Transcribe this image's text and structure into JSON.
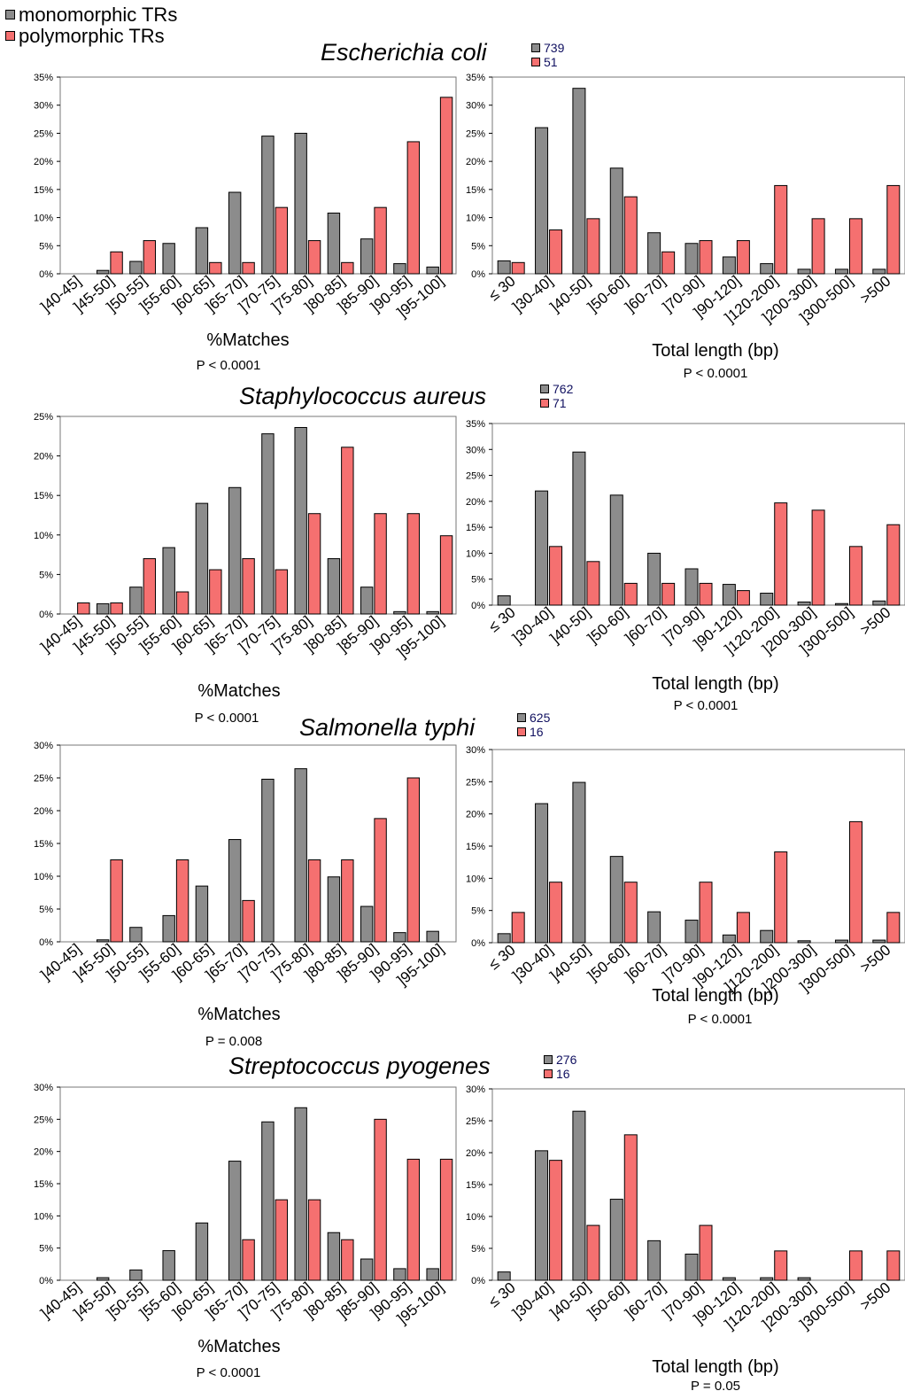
{
  "legend": [
    {
      "label": "monomorphic TRs",
      "color": "#8c8c8c"
    },
    {
      "label": "polymorphic TRs",
      "color": "#f57070"
    }
  ],
  "colors": {
    "mono": "#8c8c8c",
    "poly": "#f57070"
  },
  "panels": [
    {
      "species": "Escherichia coli",
      "counts": {
        "mono": "739",
        "poly": "51"
      }
    },
    {
      "species": "Staphylococcus aureus",
      "counts": {
        "mono": "762",
        "poly": "71"
      }
    },
    {
      "species": "Salmonella typhi",
      "counts": {
        "mono": "625",
        "poly": "16"
      }
    },
    {
      "species": "Streptococcus pyogenes",
      "counts": {
        "mono": "276",
        "poly": "16"
      }
    }
  ],
  "chart_data": [
    {
      "id": "ecoli_matches",
      "type": "bar",
      "xlabel": "%Matches",
      "pvalue": "P < 0.0001",
      "categories": [
        "]40-45]",
        "]45-50]",
        "]50-55]",
        "]55-60]",
        "]60-65]",
        "]65-70]",
        "]70-75]",
        "]75-80]",
        "]80-85]",
        "]85-90]",
        "]90-95]",
        "]95-100]"
      ],
      "ylim": [
        0,
        35
      ],
      "yticks": [
        "0%",
        "5%",
        "10%",
        "15%",
        "20%",
        "25%",
        "30%",
        "35%"
      ],
      "series": [
        {
          "name": "monomorphic TRs",
          "values": [
            0,
            0.6,
            2.2,
            5.4,
            8.2,
            14.5,
            24.5,
            25,
            10.8,
            6.2,
            1.8,
            1.2
          ]
        },
        {
          "name": "polymorphic TRs",
          "values": [
            0,
            3.9,
            5.9,
            0,
            2,
            2,
            11.8,
            5.9,
            2,
            11.8,
            23.5,
            31.4
          ]
        }
      ]
    },
    {
      "id": "ecoli_length",
      "type": "bar",
      "xlabel": "Total length (bp)",
      "pvalue": "P < 0.0001",
      "categories": [
        "≤ 30",
        "]30-40]",
        "]40-50]",
        "]50-60]",
        "]60-70]",
        "]70-90]",
        "]90-120]",
        "]120-200]",
        "]200-300]",
        "]300-500]",
        ">500"
      ],
      "ylim": [
        0,
        35
      ],
      "yticks": [
        "0%",
        "5%",
        "10%",
        "15%",
        "20%",
        "25%",
        "30%",
        "35%"
      ],
      "series": [
        {
          "name": "monomorphic TRs",
          "values": [
            2.3,
            26,
            33,
            18.8,
            7.3,
            5.4,
            3,
            1.8,
            0.8,
            0.8,
            0.8
          ]
        },
        {
          "name": "polymorphic TRs",
          "values": [
            2,
            7.8,
            9.8,
            13.7,
            3.9,
            5.9,
            5.9,
            15.7,
            9.8,
            9.8,
            15.7
          ]
        }
      ]
    },
    {
      "id": "saureus_matches",
      "type": "bar",
      "xlabel": "%Matches",
      "pvalue": "P < 0.0001",
      "categories": [
        "]40-45]",
        "]45-50]",
        "]50-55]",
        "]55-60]",
        "]60-65]",
        "]65-70]",
        "]70-75]",
        "]75-80]",
        "]80-85]",
        "]85-90]",
        "]90-95]",
        "]95-100]"
      ],
      "ylim": [
        0,
        25
      ],
      "yticks": [
        "0%",
        "5%",
        "10%",
        "15%",
        "20%",
        "25%"
      ],
      "series": [
        {
          "name": "monomorphic TRs",
          "values": [
            0,
            1.3,
            3.4,
            8.4,
            14,
            16,
            22.8,
            23.6,
            7,
            3.4,
            0.3,
            0.3
          ]
        },
        {
          "name": "polymorphic TRs",
          "values": [
            1.4,
            1.4,
            7,
            2.8,
            5.6,
            7,
            5.6,
            12.7,
            21.1,
            12.7,
            12.7,
            9.9
          ]
        }
      ]
    },
    {
      "id": "saureus_length",
      "type": "bar",
      "xlabel": "Total length (bp)",
      "pvalue": "P < 0.0001",
      "categories": [
        "≤ 30",
        "]30-40]",
        "]40-50]",
        "]50-60]",
        "]60-70]",
        "]70-90]",
        "]90-120]",
        "]120-200]",
        "]200-300]",
        "]300-500]",
        ">500"
      ],
      "ylim": [
        0,
        35
      ],
      "yticks": [
        "0%",
        "5%",
        "10%",
        "15%",
        "20%",
        "25%",
        "30%",
        "35%"
      ],
      "series": [
        {
          "name": "monomorphic TRs",
          "values": [
            1.8,
            22,
            29.5,
            21.2,
            10,
            7,
            4,
            2.3,
            0.6,
            0.3,
            0.8
          ]
        },
        {
          "name": "polymorphic TRs",
          "values": [
            0,
            11.3,
            8.4,
            4.2,
            4.2,
            4.2,
            2.8,
            19.7,
            18.3,
            11.3,
            15.5
          ]
        }
      ]
    },
    {
      "id": "styphi_matches",
      "type": "bar",
      "xlabel": "%Matches",
      "pvalue": "P = 0.008",
      "categories": [
        "]40-45]",
        "]45-50]",
        "]50-55]",
        "]55-60]",
        "]60-65]",
        "]65-70]",
        "]70-75]",
        "]75-80]",
        "]80-85]",
        "]85-90]",
        "]90-95]",
        "]95-100]"
      ],
      "ylim": [
        0,
        30
      ],
      "yticks": [
        "0%",
        "5%",
        "10%",
        "15%",
        "20%",
        "25%",
        "30%"
      ],
      "series": [
        {
          "name": "monomorphic TRs",
          "values": [
            0,
            0.3,
            2.2,
            4,
            8.5,
            15.6,
            24.8,
            26.4,
            9.9,
            5.4,
            1.4,
            1.6
          ]
        },
        {
          "name": "polymorphic TRs",
          "values": [
            0,
            12.5,
            0,
            12.5,
            0,
            6.3,
            0,
            12.5,
            12.5,
            18.8,
            25,
            0
          ]
        }
      ]
    },
    {
      "id": "styphi_length",
      "type": "bar",
      "xlabel": "Total length (bp)",
      "pvalue": "P < 0.0001",
      "categories": [
        "≤ 30",
        "]30-40]",
        "]40-50]",
        "]50-60]",
        "]60-70]",
        "]70-90]",
        "]90-120]",
        "]120-200]",
        "]200-300]",
        "]300-500]",
        ">500"
      ],
      "ylim": [
        0,
        30
      ],
      "yticks": [
        "0%",
        "5%",
        "10%",
        "15%",
        "20%",
        "25%",
        "30%"
      ],
      "series": [
        {
          "name": "monomorphic TRs",
          "values": [
            1.4,
            21.6,
            24.9,
            13.4,
            4.8,
            3.5,
            1.2,
            1.9,
            0.3,
            0.4,
            0.4
          ]
        },
        {
          "name": "polymorphic TRs",
          "values": [
            4.7,
            9.4,
            0,
            9.4,
            0,
            9.4,
            4.7,
            14.1,
            0,
            18.8,
            4.7
          ]
        }
      ]
    },
    {
      "id": "spyogenes_matches",
      "type": "bar",
      "xlabel": "%Matches",
      "pvalue": "P < 0.0001",
      "categories": [
        "]40-45]",
        "]45-50]",
        "]50-55]",
        "]55-60]",
        "]60-65]",
        "]65-70]",
        "]70-75]",
        "]75-80]",
        "]80-85]",
        "]85-90]",
        "]90-95]",
        "]95-100]"
      ],
      "ylim": [
        0,
        30
      ],
      "yticks": [
        "0%",
        "5%",
        "10%",
        "15%",
        "20%",
        "25%",
        "30%"
      ],
      "series": [
        {
          "name": "monomorphic TRs",
          "values": [
            0,
            0.4,
            1.6,
            4.6,
            8.9,
            18.5,
            24.6,
            26.8,
            7.4,
            3.3,
            1.8,
            1.8
          ]
        },
        {
          "name": "polymorphic TRs",
          "values": [
            0,
            0,
            0,
            0,
            0,
            6.3,
            12.5,
            12.5,
            6.3,
            25,
            18.8,
            18.8
          ]
        }
      ]
    },
    {
      "id": "spyogenes_length",
      "type": "bar",
      "xlabel": "Total length (bp)",
      "pvalue": "P = 0.05",
      "categories": [
        "≤ 30",
        "]30-40]",
        "]40-50]",
        "]50-60]",
        "]60-70]",
        "]70-90]",
        "]90-120]",
        "]120-200]",
        "]200-300]",
        "]300-500]",
        ">500"
      ],
      "ylim": [
        0,
        30
      ],
      "yticks": [
        "0%",
        "5%",
        "10%",
        "15%",
        "20%",
        "25%",
        "30%"
      ],
      "series": [
        {
          "name": "monomorphic TRs",
          "values": [
            1.3,
            20.3,
            26.5,
            12.7,
            6.2,
            4.1,
            0.4,
            0.4,
            0.4,
            0,
            0
          ]
        },
        {
          "name": "polymorphic TRs",
          "values": [
            0,
            18.8,
            8.6,
            22.8,
            0,
            8.6,
            0,
            4.6,
            0,
            4.6,
            4.6
          ]
        }
      ]
    }
  ]
}
